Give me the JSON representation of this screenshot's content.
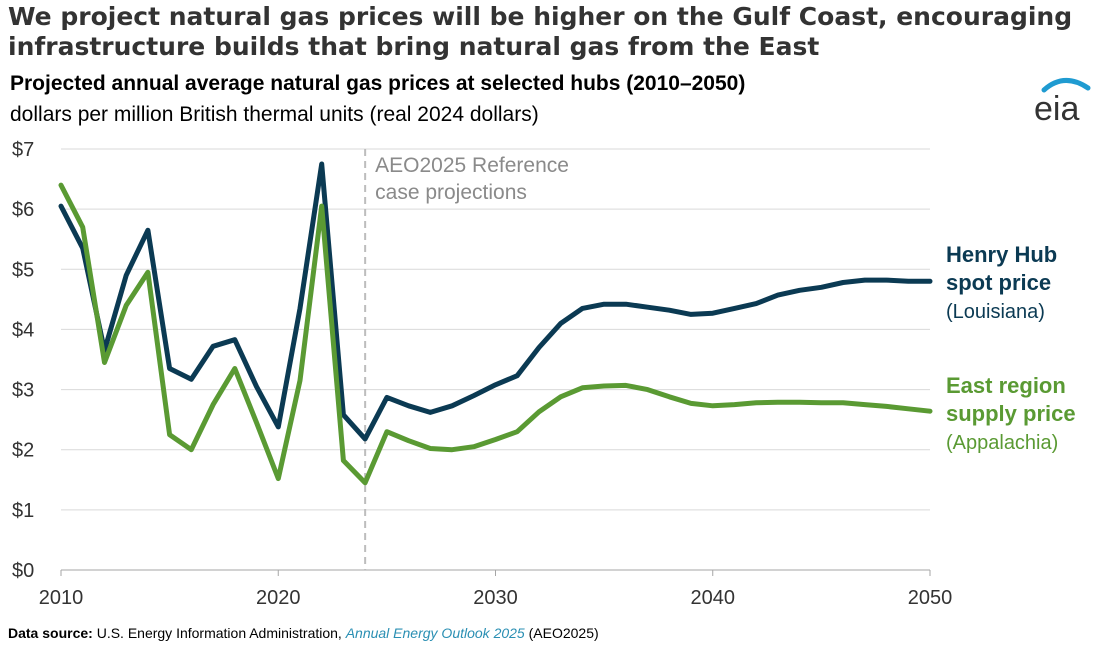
{
  "headline": "We project natural gas prices will be higher on the Gulf Coast, encouraging infrastructure builds that bring natural gas from the East",
  "logo_text": "eia",
  "colors": {
    "henry_hub": "#0b3a53",
    "east_region": "#5a9a33",
    "grid": "#d9d9d9",
    "divider": "#bdbdbd",
    "logo_arc": "#1f9bd1"
  },
  "source": {
    "label": "Data source:",
    "text": "U.S. Energy Information Administration,",
    "link": "Annual Energy Outlook 2025",
    "suffix": "(AEO2025)"
  },
  "chart_data": {
    "type": "line",
    "title": "Projected annual average natural gas prices at selected hubs (2010–2050)",
    "subtitle": "dollars per million British thermal units (real 2024 dollars)",
    "xlim": [
      2010,
      2050
    ],
    "ylim": [
      0,
      7
    ],
    "x_ticks": [
      2010,
      2020,
      2030,
      2040,
      2050
    ],
    "x_tick_labels": [
      "2010",
      "2020",
      "2030",
      "2040",
      "2050"
    ],
    "y_ticks": [
      0,
      1,
      2,
      3,
      4,
      5,
      6,
      7
    ],
    "y_tick_labels": [
      "$0",
      "$1",
      "$2",
      "$3",
      "$4",
      "$5",
      "$6",
      "$7"
    ],
    "grid": "horizontal",
    "projection_start": 2024,
    "annotation_lines": [
      "AEO2025 Reference",
      "case projections"
    ],
    "series": [
      {
        "key": "henry_hub",
        "label_lines": [
          "Henry Hub",
          "spot price"
        ],
        "sublabel": "(Louisiana)",
        "x": [
          2010,
          2011,
          2012,
          2013,
          2014,
          2015,
          2016,
          2017,
          2018,
          2019,
          2020,
          2021,
          2022,
          2023,
          2024,
          2025,
          2026,
          2027,
          2028,
          2029,
          2030,
          2031,
          2032,
          2033,
          2034,
          2035,
          2036,
          2037,
          2038,
          2039,
          2040,
          2041,
          2042,
          2043,
          2044,
          2045,
          2046,
          2047,
          2048,
          2049,
          2050
        ],
        "y": [
          6.05,
          5.35,
          3.65,
          4.9,
          5.65,
          3.35,
          3.17,
          3.72,
          3.83,
          3.05,
          2.38,
          4.35,
          6.75,
          2.58,
          2.18,
          2.87,
          2.73,
          2.62,
          2.73,
          2.9,
          3.08,
          3.23,
          3.7,
          4.1,
          4.35,
          4.42,
          4.42,
          4.37,
          4.32,
          4.25,
          4.27,
          4.35,
          4.43,
          4.57,
          4.65,
          4.7,
          4.78,
          4.82,
          4.82,
          4.8,
          4.8
        ]
      },
      {
        "key": "east_region",
        "label_lines": [
          "East region",
          "supply price"
        ],
        "sublabel": "(Appalachia)",
        "x": [
          2010,
          2011,
          2012,
          2013,
          2014,
          2015,
          2016,
          2017,
          2018,
          2019,
          2020,
          2021,
          2022,
          2023,
          2024,
          2025,
          2026,
          2027,
          2028,
          2029,
          2030,
          2031,
          2032,
          2033,
          2034,
          2035,
          2036,
          2037,
          2038,
          2039,
          2040,
          2041,
          2042,
          2043,
          2044,
          2045,
          2046,
          2047,
          2048,
          2049,
          2050
        ],
        "y": [
          6.4,
          5.7,
          3.45,
          4.4,
          4.95,
          2.25,
          2.0,
          2.75,
          3.35,
          2.45,
          1.52,
          3.15,
          6.05,
          1.82,
          1.45,
          2.3,
          2.15,
          2.02,
          2.0,
          2.05,
          2.17,
          2.3,
          2.63,
          2.88,
          3.03,
          3.06,
          3.07,
          3.0,
          2.88,
          2.77,
          2.73,
          2.75,
          2.78,
          2.79,
          2.79,
          2.78,
          2.78,
          2.75,
          2.72,
          2.68,
          2.64
        ]
      }
    ]
  }
}
